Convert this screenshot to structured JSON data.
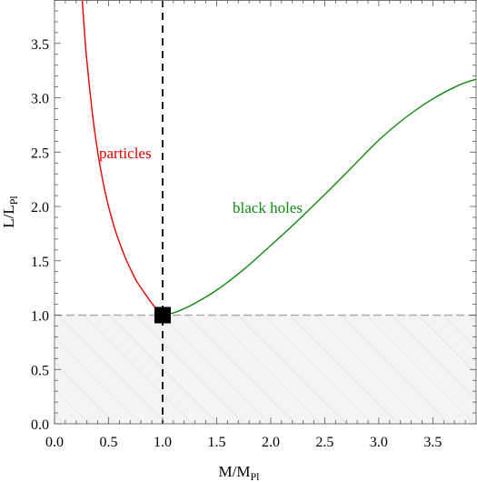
{
  "chart_data": {
    "type": "line",
    "xlabel": "M/M",
    "xlabel_subscript": "Pl",
    "ylabel": "L/L",
    "ylabel_subscript": "Pl",
    "xlim": [
      0,
      3.9
    ],
    "ylim": [
      0,
      3.9
    ],
    "x_ticks": [
      "0.0",
      "0.5",
      "1.0",
      "1.5",
      "2.0",
      "2.5",
      "3.0",
      "3.5"
    ],
    "y_ticks": [
      "0.0",
      "0.5",
      "1.0",
      "1.5",
      "2.0",
      "2.5",
      "3.0",
      "3.5"
    ],
    "grid": false,
    "series": [
      {
        "name": "particles",
        "color": "#e00000",
        "x": [
          0.25,
          0.28,
          0.3,
          0.35,
          0.4,
          0.45,
          0.5,
          0.55,
          0.6,
          0.65,
          0.7,
          0.75,
          0.8,
          0.85,
          0.9,
          0.95,
          1.0
        ],
        "y": [
          4.0,
          3.57,
          3.33,
          2.86,
          2.5,
          2.22,
          2.0,
          1.82,
          1.67,
          1.54,
          1.43,
          1.33,
          1.25,
          1.18,
          1.11,
          1.05,
          1.0
        ]
      },
      {
        "name": "black holes",
        "color": "#118811",
        "x": [
          1.0,
          1.1,
          1.2,
          1.3,
          1.5,
          1.75,
          2.0,
          2.25,
          2.5,
          2.75,
          3.0,
          3.25,
          3.5,
          3.75,
          3.9
        ],
        "y": [
          1.0,
          1.02,
          1.06,
          1.11,
          1.23,
          1.42,
          1.64,
          1.87,
          2.11,
          2.36,
          2.61,
          2.82,
          2.99,
          3.12,
          3.17
        ]
      }
    ],
    "annotations": [
      {
        "text": "particles",
        "color": "#e00000"
      },
      {
        "text": "black holes",
        "color": "#118811"
      }
    ],
    "reference_lines": {
      "horizontal_y": 1.0,
      "vertical_x": 1.0,
      "shaded_region_below_y": 1.0
    },
    "marker": {
      "x": 1.0,
      "y": 1.0,
      "shape": "square",
      "color": "#000000"
    }
  }
}
